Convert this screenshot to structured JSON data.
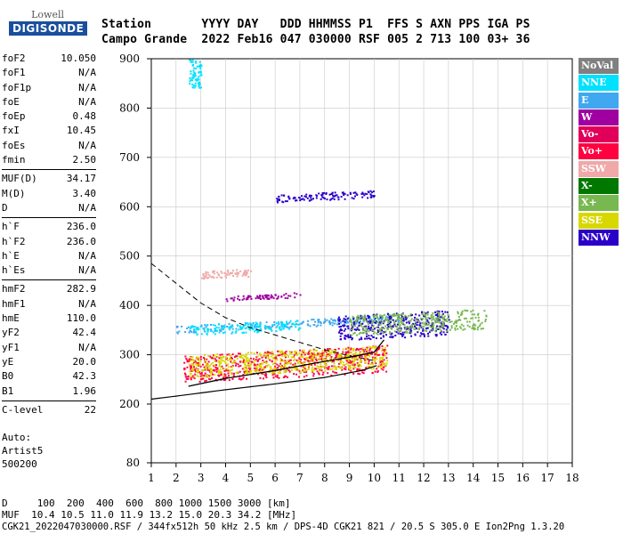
{
  "logo": {
    "top": "Lowell",
    "main": "DIGISONDE"
  },
  "header": {
    "labels": "Station       YYYY DAY   DDD HHMMSS P1  FFS S AXN PPS IGA PS",
    "values": "Campo Grande  2022 Feb16 047 030000 RSF 005 2 713 100 03+ 36"
  },
  "params": [
    {
      "n": "foF2",
      "v": "10.050"
    },
    {
      "n": "foF1",
      "v": "N/A"
    },
    {
      "n": "foF1p",
      "v": "N/A"
    },
    {
      "n": "foE",
      "v": "N/A"
    },
    {
      "n": "foEp",
      "v": "0.48"
    },
    {
      "n": "fxI",
      "v": "10.45"
    },
    {
      "n": "foEs",
      "v": "N/A"
    },
    {
      "n": "fmin",
      "v": "2.50"
    },
    {
      "n": "MUF(D)",
      "v": "34.17"
    },
    {
      "n": "M(D)",
      "v": "3.40"
    },
    {
      "n": "D",
      "v": "N/A"
    },
    {
      "n": "h`F",
      "v": "236.0"
    },
    {
      "n": "h`F2",
      "v": "236.0"
    },
    {
      "n": "h`E",
      "v": "N/A"
    },
    {
      "n": "h`Es",
      "v": "N/A"
    },
    {
      "n": "hmF2",
      "v": "282.9"
    },
    {
      "n": "hmF1",
      "v": "N/A"
    },
    {
      "n": "hmE",
      "v": "110.0"
    },
    {
      "n": "yF2",
      "v": "42.4"
    },
    {
      "n": "yF1",
      "v": "N/A"
    },
    {
      "n": "yE",
      "v": "20.0"
    },
    {
      "n": "B0",
      "v": "42.3"
    },
    {
      "n": "B1",
      "v": "1.96"
    },
    {
      "n": "C-level",
      "v": "22"
    }
  ],
  "auto": {
    "l1": "Auto:",
    "l2": "Artist5",
    "l3": "500200"
  },
  "legend": [
    {
      "label": "NoVal",
      "color": "#808080"
    },
    {
      "label": "NNE",
      "color": "#00e0ff"
    },
    {
      "label": "E",
      "color": "#3fa8f0"
    },
    {
      "label": "W",
      "color": "#a000a0"
    },
    {
      "label": "Vo-",
      "color": "#e0005a"
    },
    {
      "label": "Vo+",
      "color": "#ff0040"
    },
    {
      "label": "SSW",
      "color": "#f0a8a8"
    },
    {
      "label": "X-",
      "color": "#007800"
    },
    {
      "label": "X+",
      "color": "#78b850"
    },
    {
      "label": "SSE",
      "color": "#d8d800"
    },
    {
      "label": "NNW",
      "color": "#2a00c8"
    }
  ],
  "chart_data": {
    "type": "scatter",
    "title": "",
    "xlabel": "",
    "ylabel": "",
    "xlim": [
      1,
      18
    ],
    "ylim": [
      80,
      900
    ],
    "xticks": [
      1,
      2,
      3,
      4,
      5,
      6,
      7,
      8,
      9,
      10,
      11,
      12,
      13,
      14,
      15,
      16,
      17,
      18
    ],
    "yticks": [
      80,
      200,
      300,
      400,
      500,
      600,
      700,
      800,
      900
    ],
    "grid": true,
    "ionogram_trace": [
      [
        2.5,
        236
      ],
      [
        4,
        252
      ],
      [
        6,
        268
      ],
      [
        7.5,
        282
      ],
      [
        9,
        295
      ],
      [
        10,
        305
      ],
      [
        10.4,
        330
      ]
    ],
    "ionogram_trace_lower": [
      [
        1,
        210
      ],
      [
        2,
        216
      ],
      [
        4,
        229
      ],
      [
        6,
        241
      ],
      [
        8,
        254
      ],
      [
        9.5,
        268
      ],
      [
        10.1,
        278
      ]
    ],
    "profile": [
      [
        1,
        485
      ],
      [
        2,
        445
      ],
      [
        3,
        405
      ],
      [
        4,
        375
      ],
      [
        5,
        355
      ],
      [
        6,
        340
      ],
      [
        7,
        325
      ],
      [
        8,
        310
      ],
      [
        9,
        298
      ],
      [
        10,
        288
      ]
    ],
    "echo_bands": [
      {
        "mode": "E",
        "x": [
          2,
          11
        ],
        "h": [
          345,
          360
        ],
        "color": "#3fa8f0"
      },
      {
        "mode": "Vo+",
        "x": [
          2.3,
          10.5
        ],
        "h": [
          245,
          300
        ],
        "color": "#ff0040"
      },
      {
        "mode": "SSE",
        "x": [
          2.5,
          10.5
        ],
        "h": [
          255,
          300
        ],
        "color": "#d8d800"
      },
      {
        "mode": "NNW",
        "x": [
          8.5,
          13
        ],
        "h": [
          330,
          380
        ],
        "color": "#2a00c8"
      },
      {
        "mode": "X+",
        "x": [
          9,
          14.5
        ],
        "h": [
          340,
          380
        ],
        "color": "#78b850"
      },
      {
        "mode": "NNE",
        "x": [
          2.5,
          7
        ],
        "h": [
          340,
          360
        ],
        "color": "#00e0ff"
      },
      {
        "mode": "NNW",
        "x": [
          6,
          10
        ],
        "h": [
          610,
          625
        ],
        "color": "#2a00c8"
      },
      {
        "mode": "W",
        "x": [
          4,
          7
        ],
        "h": [
          410,
          420
        ],
        "color": "#a000a0"
      },
      {
        "mode": "SSW",
        "x": [
          3,
          5
        ],
        "h": [
          455,
          470
        ],
        "color": "#f0a8a8"
      },
      {
        "mode": "NNE",
        "x": [
          2.5,
          3
        ],
        "h": [
          840,
          900
        ],
        "color": "#00e0ff"
      }
    ]
  },
  "footer": {
    "d_row": "D     100  200  400  600  800 1000 1500 3000 [km]",
    "muf_row": "MUF  10.4 10.5 11.0 11.9 13.2 15.0 20.3 34.2 [MHz]",
    "info": "CGK21_2022047030000.RSF / 344fx512h 50 kHz 2.5 km / DPS-4D CGK21 821 / 20.5 S 305.0 E Ion2Png 1.3.20"
  }
}
